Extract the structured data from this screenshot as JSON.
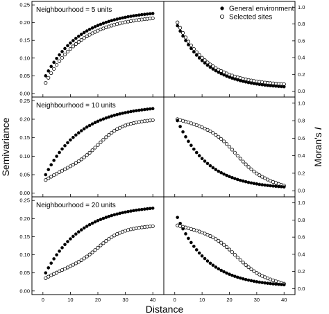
{
  "chart_data": {
    "type": "scatter",
    "xlabel": "Distance",
    "ylabel_left": "Semivariance",
    "ylabel_right_prefix": "Moran's ",
    "ylabel_right_italic": "I",
    "x_ticks": [
      "0",
      "10",
      "20",
      "30",
      "40"
    ],
    "xlim": [
      -4,
      44
    ],
    "semivariance_ticks": [
      "0.00",
      "0.05",
      "0.10",
      "0.15",
      "0.20",
      "0.25"
    ],
    "semivariance_ylim": [
      -0.01,
      0.26
    ],
    "morans_ticks": [
      "0.0",
      "0.2",
      "0.4",
      "0.6",
      "0.8",
      "1.0"
    ],
    "morans_ylim": [
      -0.07,
      1.07
    ],
    "legend": {
      "placement": "top-right",
      "entries": [
        {
          "label": "General environment",
          "marker": "filled-circle"
        },
        {
          "label": "Selected sites",
          "marker": "open-circle"
        }
      ]
    },
    "panels": [
      {
        "title": "Neighbourhood = 5 units",
        "semivariance": {
          "general_environment": {
            "x_start": 1,
            "x_end": 40,
            "y_start": 0.05,
            "y_end": 0.235,
            "shape": "concave"
          },
          "selected_sites": {
            "x_start": 1,
            "x_end": 40,
            "y_start": 0.03,
            "y_end": 0.222,
            "shape": "concave"
          }
        },
        "morans_I": {
          "general_environment": {
            "x_start": 1,
            "x_end": 40,
            "y_start": 0.78,
            "y_end": 0.03,
            "shape": "decay"
          },
          "selected_sites": {
            "x_start": 1,
            "x_end": 40,
            "y_start": 0.82,
            "y_end": 0.06,
            "shape": "decay"
          }
        }
      },
      {
        "title": "Neighbourhood = 10 units",
        "semivariance": {
          "general_environment": {
            "x_start": 1,
            "x_end": 40,
            "y_start": 0.05,
            "y_end": 0.238,
            "shape": "concave"
          },
          "selected_sites": {
            "x_start": 1,
            "x_end": 40,
            "y_start": 0.035,
            "y_end": 0.21,
            "shape": "sigmoid"
          }
        },
        "morans_I": {
          "general_environment": {
            "x_start": 1,
            "x_end": 40,
            "y_start": 0.8,
            "y_end": 0.02,
            "shape": "decay"
          },
          "selected_sites": {
            "x_start": 1,
            "x_end": 40,
            "y_start": 0.82,
            "y_end": 0.05,
            "shape": "gradual"
          }
        }
      },
      {
        "title": "Neighbourhood = 20 units",
        "semivariance": {
          "general_environment": {
            "x_start": 1,
            "x_end": 40,
            "y_start": 0.05,
            "y_end": 0.238,
            "shape": "concave"
          },
          "selected_sites": {
            "x_start": 1,
            "x_end": 40,
            "y_start": 0.035,
            "y_end": 0.19,
            "shape": "sigmoid"
          }
        },
        "morans_I": {
          "general_environment": {
            "x_start": 1,
            "x_end": 40,
            "y_start": 0.83,
            "y_end": 0.02,
            "shape": "decay"
          },
          "selected_sites": {
            "x_start": 1,
            "x_end": 40,
            "y_start": 0.74,
            "y_end": 0.05,
            "shape": "gradual"
          }
        }
      }
    ]
  }
}
